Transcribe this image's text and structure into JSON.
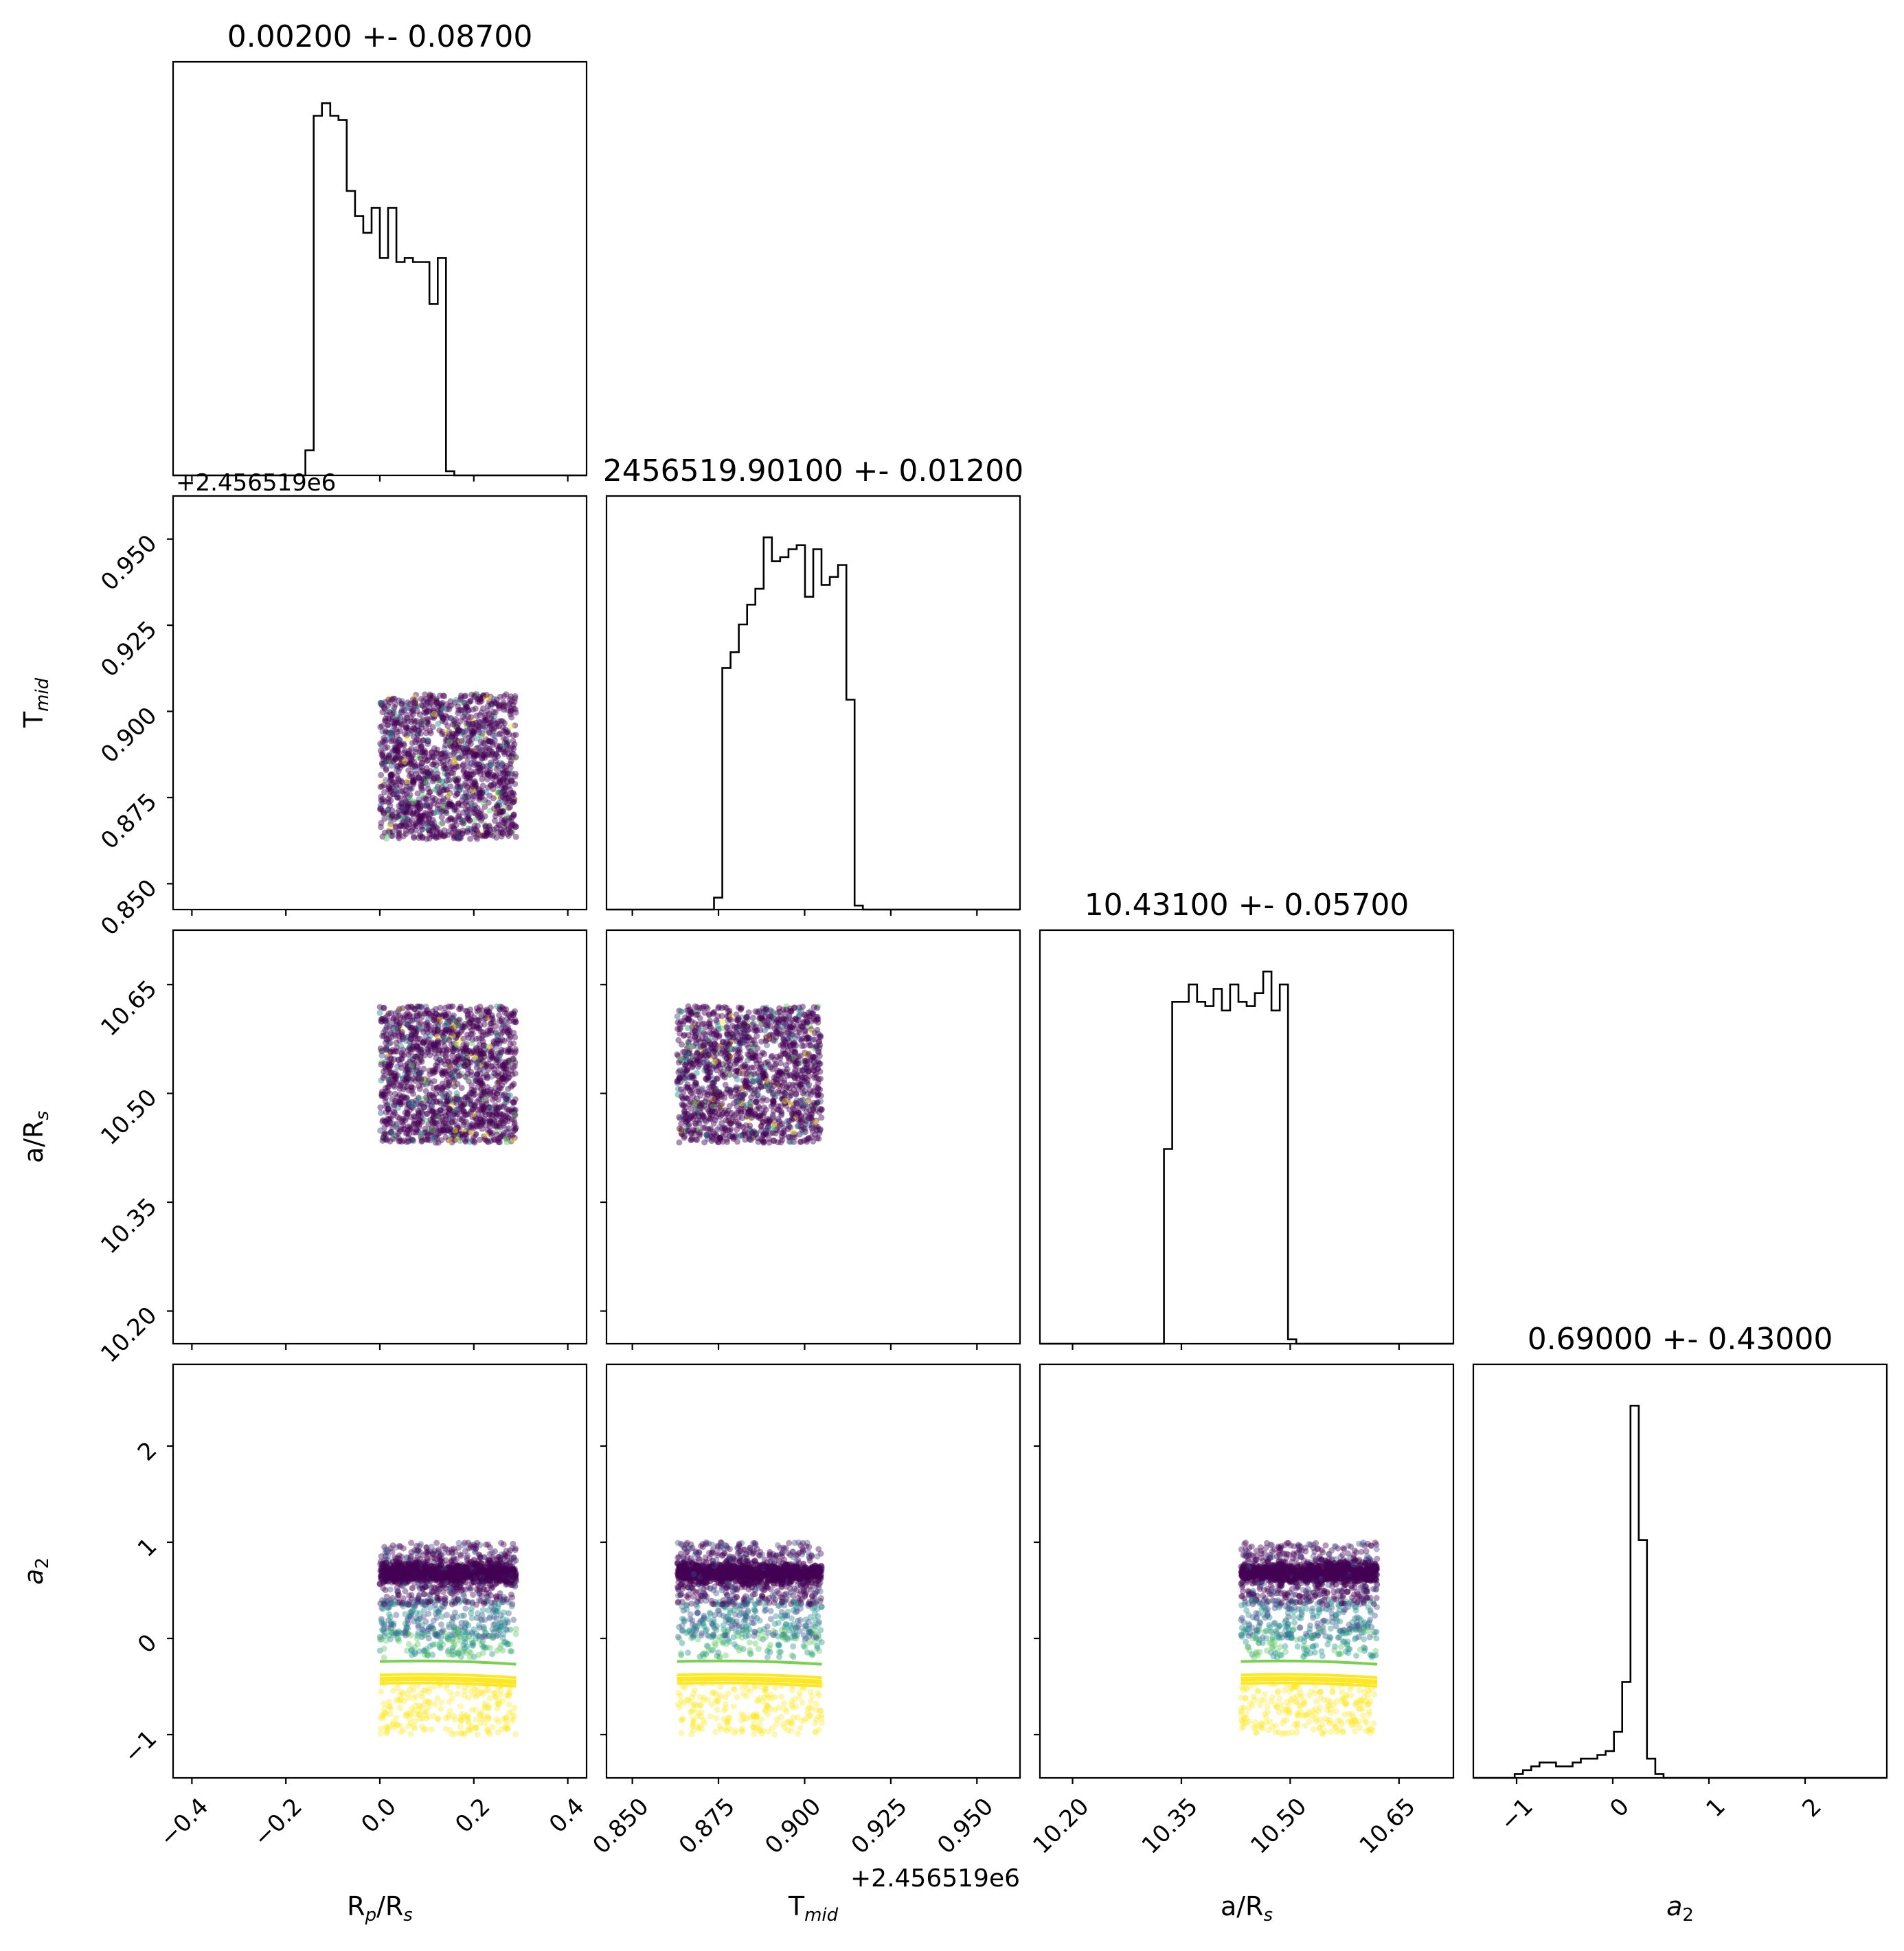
{
  "chart_data": {
    "type": "corner",
    "parameters": [
      {
        "key": "rp",
        "label": "R",
        "sub": "p",
        "label_rest": "/R",
        "sub2": "s",
        "title": "0.00200 +- 0.08700",
        "lim": [
          -0.44,
          0.44
        ],
        "ticks": [
          -0.4,
          -0.2,
          0.0,
          0.2,
          0.4
        ],
        "tick_labels": [
          "−0.4",
          "−0.2",
          "0.0",
          "0.2",
          "0.4"
        ],
        "sample_range": [
          0.0,
          0.29
        ]
      },
      {
        "key": "tmid",
        "label": "T",
        "sub": "mid",
        "label_rest": "",
        "sub2": "",
        "title": "2456519.90100 +- 0.01200",
        "offset": "+2.456519e6",
        "lim": [
          0.8425,
          0.9625
        ],
        "ticks": [
          0.85,
          0.875,
          0.9,
          0.925,
          0.95
        ],
        "tick_labels": [
          "0.850",
          "0.875",
          "0.900",
          "0.925",
          "0.950"
        ],
        "sample_range": [
          0.863,
          0.905
        ]
      },
      {
        "key": "ars",
        "label": "a/R",
        "sub": "s",
        "label_rest": "",
        "sub2": "",
        "title": "10.43100 +- 0.05700",
        "lim": [
          10.155,
          10.725
        ],
        "ticks": [
          10.2,
          10.35,
          10.5,
          10.65
        ],
        "tick_labels": [
          "10.20",
          "10.35",
          "10.50",
          "10.65"
        ],
        "sample_range": [
          10.432,
          10.62
        ]
      },
      {
        "key": "a2",
        "label": "a",
        "sub": "2",
        "label_rest": "",
        "sub2": "",
        "italic": true,
        "title": "0.69000 +- 0.43000",
        "lim": [
          -1.45,
          2.85
        ],
        "ticks": [
          -1,
          0,
          1,
          2
        ],
        "tick_labels": [
          "−1",
          "0",
          "1",
          "2"
        ],
        "sample_range": [
          -1.0,
          1.0
        ]
      }
    ],
    "histograms": [
      {
        "param": "rp",
        "edges_from": -0.44,
        "edges_to": 0.44,
        "bins": 50,
        "heights": [
          0,
          0,
          0,
          0,
          0,
          0,
          0,
          0,
          0,
          0,
          0,
          0,
          0,
          0,
          0,
          0,
          0.06,
          0.86,
          0.89,
          0.86,
          0.85,
          0.68,
          0.62,
          0.58,
          0.64,
          0.52,
          0.64,
          0.51,
          0.52,
          0.51,
          0.51,
          0.41,
          0.52,
          0.01,
          0,
          0,
          0,
          0,
          0,
          0,
          0,
          0,
          0,
          0,
          0,
          0,
          0,
          0,
          0,
          0
        ]
      },
      {
        "param": "tmid",
        "edges_from": 0.8425,
        "edges_to": 0.9625,
        "bins": 50,
        "heights": [
          0,
          0,
          0,
          0,
          0,
          0,
          0,
          0,
          0,
          0,
          0,
          0,
          0,
          0.03,
          0.61,
          0.65,
          0.72,
          0.77,
          0.81,
          0.94,
          0.88,
          0.89,
          0.91,
          0.92,
          0.79,
          0.91,
          0.82,
          0.84,
          0.87,
          0.53,
          0.01,
          0,
          0,
          0,
          0,
          0,
          0,
          0,
          0,
          0,
          0,
          0,
          0,
          0,
          0,
          0,
          0,
          0,
          0,
          0
        ]
      },
      {
        "param": "ars",
        "edges_from": 10.155,
        "edges_to": 10.725,
        "bins": 50,
        "heights": [
          0,
          0,
          0,
          0,
          0,
          0,
          0,
          0,
          0,
          0,
          0,
          0,
          0,
          0,
          0,
          0.45,
          0.79,
          0.79,
          0.83,
          0.79,
          0.78,
          0.82,
          0.77,
          0.83,
          0.79,
          0.78,
          0.81,
          0.86,
          0.77,
          0.83,
          0.01,
          0,
          0,
          0,
          0,
          0,
          0,
          0,
          0,
          0,
          0,
          0,
          0,
          0,
          0,
          0,
          0,
          0,
          0,
          0
        ]
      },
      {
        "param": "a2",
        "edges_from": -1.45,
        "edges_to": 2.85,
        "bins": 50,
        "heights": [
          0,
          0,
          0,
          0,
          0,
          0.01,
          0.02,
          0.03,
          0.04,
          0.04,
          0.03,
          0.03,
          0.04,
          0.05,
          0.05,
          0.06,
          0.07,
          0.12,
          0.25,
          0.97,
          0.62,
          0.05,
          0.01,
          0,
          0,
          0,
          0,
          0,
          0,
          0,
          0,
          0,
          0,
          0,
          0,
          0,
          0,
          0,
          0,
          0,
          0,
          0,
          0,
          0,
          0,
          0,
          0,
          0,
          0,
          0
        ]
      }
    ],
    "colormap": [
      "#440154",
      "#3b528b",
      "#21918c",
      "#5ec962",
      "#fde725"
    ],
    "a2_bands": {
      "dense_center": 0.68,
      "green_line": -0.24,
      "yellow_upper": -0.38,
      "yellow_lower": -0.47
    },
    "grid": false,
    "legend": "none"
  }
}
